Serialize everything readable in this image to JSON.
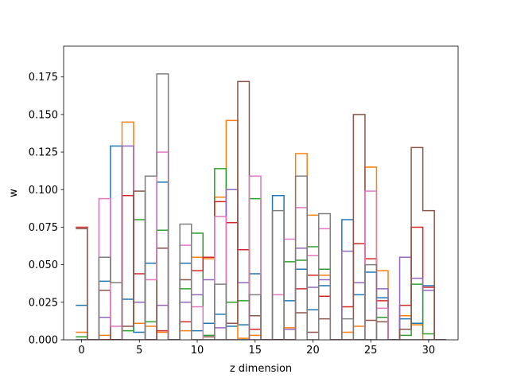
{
  "chart_data": {
    "type": "step",
    "title": "",
    "xlabel": "z dimension",
    "ylabel": "w",
    "xlim": [
      -1.55,
      32.55
    ],
    "ylim": [
      0,
      0.1955
    ],
    "xticks": [
      0,
      5,
      10,
      15,
      20,
      25,
      30
    ],
    "yticks": [
      0.0,
      0.025,
      0.05,
      0.075,
      0.1,
      0.125,
      0.15,
      0.175
    ],
    "ytick_labels": [
      "0.000",
      "0.025",
      "0.050",
      "0.075",
      "0.100",
      "0.125",
      "0.150",
      "0.175"
    ],
    "step_style": "step-mid, each value drawn over [x-0.5, x+0.5]",
    "x": [
      0,
      1,
      2,
      3,
      4,
      5,
      6,
      7,
      8,
      9,
      10,
      11,
      12,
      13,
      14,
      15,
      16,
      17,
      18,
      19,
      20,
      21,
      22,
      23,
      24,
      25,
      26,
      27,
      28,
      29,
      30,
      31
    ],
    "series": [
      {
        "color": "#1f77b4",
        "values": [
          0.023,
          0.0,
          0.039,
          0.129,
          0.027,
          0.005,
          0.051,
          0.105,
          0.0,
          0.051,
          0.006,
          0.011,
          0.017,
          0.009,
          0.01,
          0.044,
          0.0,
          0.096,
          0.026,
          0.047,
          0.02,
          0.036,
          0.0,
          0.08,
          0.03,
          0.045,
          0.028,
          0.0,
          0.014,
          0.011,
          0.036,
          0.0
        ]
      },
      {
        "color": "#ff7f0e",
        "values": [
          0.005,
          0.0,
          0.003,
          0.0,
          0.145,
          0.011,
          0.009,
          0.005,
          0.0,
          0.006,
          0.055,
          0.054,
          0.095,
          0.146,
          0.001,
          0.003,
          0.0,
          0.0,
          0.008,
          0.124,
          0.083,
          0.043,
          0.0,
          0.005,
          0.009,
          0.115,
          0.046,
          0.0,
          0.016,
          0.01,
          0.0,
          0.0
        ]
      },
      {
        "color": "#2ca02c",
        "values": [
          0.002,
          0.0,
          0.0,
          0.0,
          0.006,
          0.08,
          0.012,
          0.073,
          0.0,
          0.034,
          0.071,
          0.003,
          0.114,
          0.025,
          0.026,
          0.094,
          0.0,
          0.0,
          0.052,
          0.053,
          0.062,
          0.047,
          0.0,
          0.0,
          0.0,
          0.0,
          0.015,
          0.0,
          0.003,
          0.037,
          0.004,
          0.0
        ]
      },
      {
        "color": "#d62728",
        "values": [
          0.075,
          0.0,
          0.0,
          0.0,
          0.096,
          0.044,
          0.0,
          0.006,
          0.0,
          0.012,
          0.046,
          0.055,
          0.092,
          0.078,
          0.06,
          0.007,
          0.0,
          0.0,
          0.0,
          0.034,
          0.043,
          0.029,
          0.0,
          0.022,
          0.064,
          0.054,
          0.026,
          0.0,
          0.023,
          0.075,
          0.035,
          0.0
        ]
      },
      {
        "color": "#9467bd",
        "values": [
          0.0,
          0.0,
          0.015,
          0.0,
          0.129,
          0.025,
          0.0,
          0.023,
          0.0,
          0.025,
          0.03,
          0.04,
          0.008,
          0.1,
          0.038,
          0.0,
          0.0,
          0.0,
          0.007,
          0.061,
          0.035,
          0.04,
          0.0,
          0.059,
          0.038,
          0.0,
          0.034,
          0.0,
          0.055,
          0.041,
          0.033,
          0.0
        ]
      },
      {
        "color": "#8c564b",
        "values": [
          0.074,
          0.0,
          0.033,
          0.0,
          0.009,
          0.099,
          0.0,
          0.061,
          0.0,
          0.04,
          0.0,
          0.002,
          0.0,
          0.011,
          0.172,
          0.016,
          0.0,
          0.0,
          0.0,
          0.018,
          0.005,
          0.014,
          0.0,
          0.0,
          0.15,
          0.013,
          0.012,
          0.0,
          0.007,
          0.128,
          0.086,
          0.0
        ]
      },
      {
        "color": "#e377c2",
        "values": [
          0.0,
          0.0,
          0.094,
          0.009,
          0.0,
          0.0,
          0.04,
          0.125,
          0.0,
          0.063,
          0.022,
          0.0,
          0.082,
          0.0,
          0.0,
          0.109,
          0.0,
          0.03,
          0.067,
          0.088,
          0.056,
          0.074,
          0.0,
          0.0,
          0.0,
          0.099,
          0.021,
          0.0,
          0.0,
          0.0,
          0.0,
          0.0
        ]
      },
      {
        "color": "#7f7f7f",
        "values": [
          0.0,
          0.0,
          0.055,
          0.038,
          0.0,
          0.0,
          0.109,
          0.177,
          0.0,
          0.077,
          0.0,
          0.0,
          0.037,
          0.0,
          0.0,
          0.03,
          0.0,
          0.086,
          0.0,
          0.109,
          0.0,
          0.084,
          0.0,
          0.014,
          0.0,
          0.05,
          0.0,
          0.0,
          0.0,
          0.0,
          0.0,
          0.0
        ]
      }
    ]
  }
}
